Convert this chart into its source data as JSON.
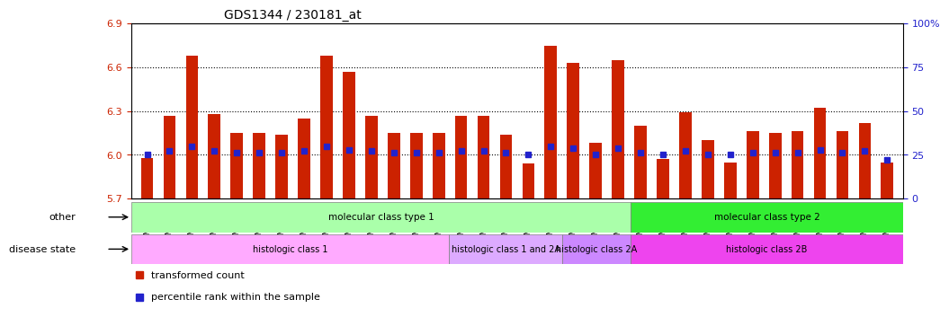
{
  "title": "GDS1344 / 230181_at",
  "samples": [
    "GSM60242",
    "GSM60243",
    "GSM60246",
    "GSM60247",
    "GSM60248",
    "GSM60249",
    "GSM60250",
    "GSM60251",
    "GSM60252",
    "GSM60253",
    "GSM60254",
    "GSM60257",
    "GSM60260",
    "GSM60269",
    "GSM60245",
    "GSM60255",
    "GSM60262",
    "GSM60267",
    "GSM60268",
    "GSM60244",
    "GSM60261",
    "GSM60266",
    "GSM60270",
    "GSM60241",
    "GSM60256",
    "GSM60258",
    "GSM60259",
    "GSM60263",
    "GSM60264",
    "GSM60265",
    "GSM60271",
    "GSM60272",
    "GSM60273",
    "GSM60274"
  ],
  "transformed_count": [
    5.98,
    6.27,
    6.68,
    6.28,
    6.15,
    6.15,
    6.14,
    6.25,
    6.68,
    6.57,
    6.27,
    6.15,
    6.15,
    6.15,
    6.27,
    6.27,
    6.14,
    5.94,
    6.75,
    6.63,
    6.08,
    6.65,
    6.2,
    5.97,
    6.29,
    6.1,
    5.95,
    6.16,
    6.15,
    6.16,
    6.32,
    6.16,
    6.22,
    5.95
  ],
  "percentile": [
    25,
    27,
    30,
    27,
    26,
    26,
    26,
    27,
    30,
    28,
    27,
    26,
    26,
    26,
    27,
    27,
    26,
    25,
    30,
    29,
    25,
    29,
    26,
    25,
    27,
    25,
    25,
    26,
    26,
    26,
    28,
    26,
    27,
    22
  ],
  "baseline": 5.7,
  "ylim_left": [
    5.7,
    6.9
  ],
  "ylim_right": [
    0,
    100
  ],
  "yticks_left": [
    5.7,
    6.0,
    6.3,
    6.6,
    6.9
  ],
  "yticks_right": [
    0,
    25,
    50,
    75,
    100
  ],
  "bar_color": "#cc2200",
  "dot_color": "#2222cc",
  "grid_color": "#000000",
  "other_groups": [
    {
      "label": "molecular class type 1",
      "start": 0,
      "end": 22,
      "color": "#aaffaa"
    },
    {
      "label": "molecular class type 2",
      "start": 22,
      "end": 34,
      "color": "#33ee33"
    }
  ],
  "disease_groups": [
    {
      "label": "histologic class 1",
      "start": 0,
      "end": 14,
      "color": "#ffaaff"
    },
    {
      "label": "histologic class 1 and 2A",
      "start": 14,
      "end": 19,
      "color": "#ddaaff"
    },
    {
      "label": "histologic class 2A",
      "start": 19,
      "end": 22,
      "color": "#cc88ff"
    },
    {
      "label": "histologic class 2B",
      "start": 22,
      "end": 34,
      "color": "#ee44ee"
    }
  ],
  "legend_items": [
    {
      "label": "transformed count",
      "color": "#cc2200",
      "marker": "s"
    },
    {
      "label": "percentile rank within the sample",
      "color": "#2222cc",
      "marker": "s"
    }
  ]
}
